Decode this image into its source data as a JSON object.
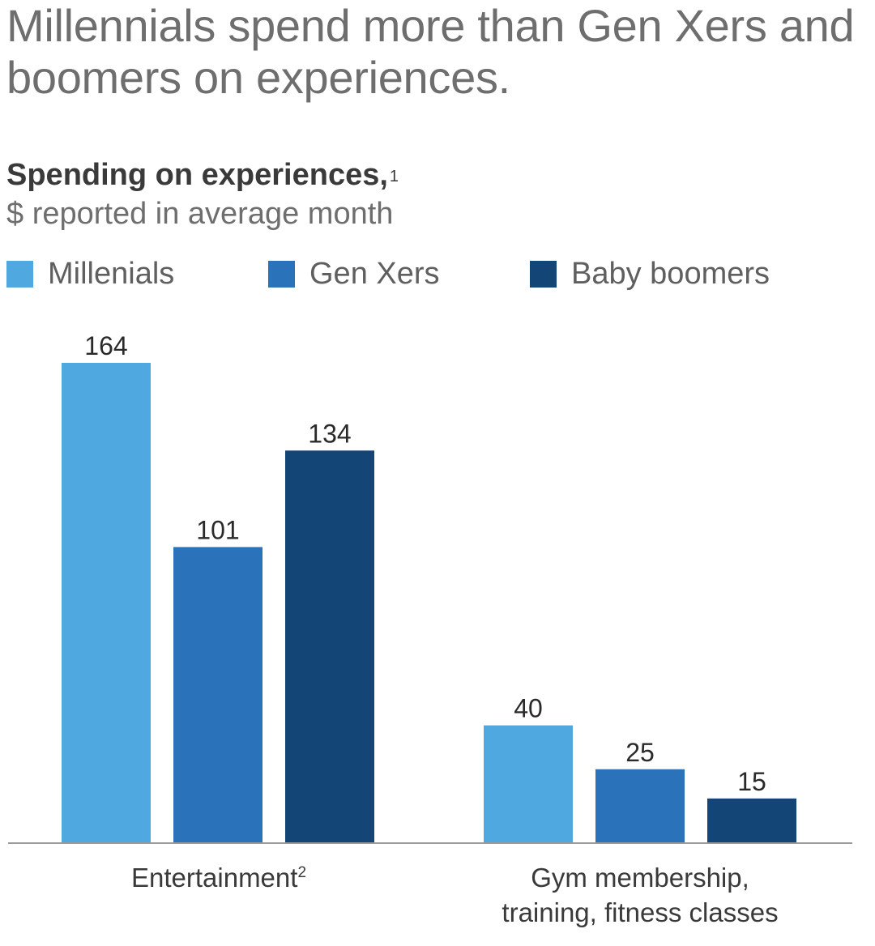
{
  "headline": "Millennials spend more than Gen Xers and boomers on experiences.",
  "chart_data": {
    "type": "bar",
    "title": "Spending on experiences,",
    "title_footnote": "1",
    "subtitle": "$ reported in average month",
    "categories": [
      {
        "label": "Entertainment",
        "footnote": "2"
      },
      {
        "label_lines": [
          "Gym membership,",
          "training, fitness classes"
        ]
      }
    ],
    "series": [
      {
        "name": "Millenials",
        "color": "#4FA8E0",
        "values": [
          164,
          40
        ]
      },
      {
        "name": "Gen Xers",
        "color": "#2A73BB",
        "values": [
          101,
          25
        ]
      },
      {
        "name": "Baby boomers",
        "color": "#134577",
        "values": [
          134,
          15
        ]
      }
    ],
    "ylim": [
      0,
      164
    ],
    "legend_position": "top",
    "grid": false,
    "axis_color": "#9a9a9a"
  }
}
